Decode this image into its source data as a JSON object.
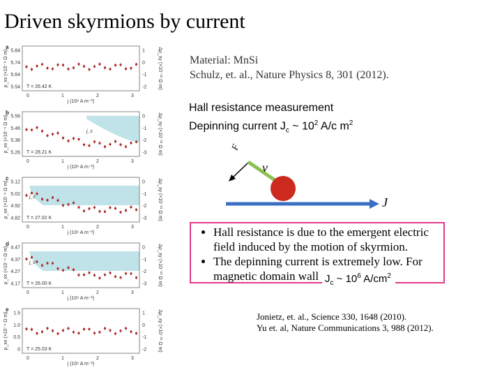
{
  "slide": {
    "title": "Driven skyrmions by current"
  },
  "reference_box": {
    "line1": "Material: MnSi",
    "line2": "Schulz, et. al., Nature Physics 8, 301 (2012)."
  },
  "hall": {
    "line1": "Hall resistance measurement",
    "line2_prefix": "Depinning current J",
    "line2_sub": "c",
    "line2_mid": " ~ 10",
    "line2_sup": "2",
    "line2_unit": " A/c m",
    "line2_unit_sup": "2"
  },
  "diagram": {
    "force_label": "F",
    "velocity_label": "v",
    "current_label": "J",
    "skyrmion_color": "#cc2a1e",
    "velocity_color": "#8cc152",
    "current_color": "#3b6fc4"
  },
  "bullets": [
    "Hall resistance is due to the emergent electric field induced by the motion of skyrmion.",
    "The depinning current is extremely low. For magnetic domain wall"
  ],
  "jc_domain_wall": {
    "prefix": "J",
    "sub": "c",
    "mid": " ~ 10",
    "sup": "6",
    "unit": " A/cm",
    "unit_sup": "2"
  },
  "references": {
    "line1": "Jonietz, et. al., Science 330, 1648 (2010).",
    "line2": "Yu et. al, Nature Communications 3, 988 (2012)."
  },
  "figure": {
    "x_axis_label": "j (10⁶ A m⁻²)",
    "x_ticks": [
      "0",
      "1",
      "2",
      "3"
    ],
    "shade_color": "#bfe3e8",
    "panels": [
      {
        "label": "a",
        "temp": "T = 26.42 K",
        "yticks": [
          "5.84",
          "5.74",
          "5.64",
          "5.54"
        ],
        "rticks": [
          "1",
          "0",
          "-1",
          "-2"
        ],
        "shaded": false,
        "jc": ""
      },
      {
        "label": "b",
        "temp": "T = 28.21 K",
        "yticks": [
          "5.56",
          "5.46",
          "5.36",
          "5.26"
        ],
        "rticks": [
          "0",
          "-1",
          "-2",
          "-3"
        ],
        "shaded": true,
        "jc": "j_c"
      },
      {
        "label": "c",
        "temp": "T = 27.02 K",
        "yticks": [
          "5.12",
          "5.02",
          "4.92",
          "4.82"
        ],
        "rticks": [
          "0",
          "-1",
          "-2",
          "-3"
        ],
        "shaded": true,
        "jc": "j_c"
      },
      {
        "label": "d",
        "temp": "T = 26.00 K",
        "yticks": [
          "4.47",
          "4.37",
          "4.27",
          "4.17"
        ],
        "rticks": [
          "0",
          "-1",
          "-2",
          "-3"
        ],
        "shaded": true,
        "jc": "j_c"
      },
      {
        "label": "e",
        "temp": "T = 25.03 K",
        "yticks": [
          "1.5",
          "1.0",
          "0.5",
          "0"
        ],
        "rticks": [
          "1",
          "0",
          "-1",
          "-2"
        ],
        "shaded": false,
        "jc": ""
      }
    ],
    "y_axis_label": "ρ_xx (×10⁻⁹ Ω m)",
    "r_axis_label": "Δρ_xy (×10⁻¹¹ Ω m)"
  }
}
